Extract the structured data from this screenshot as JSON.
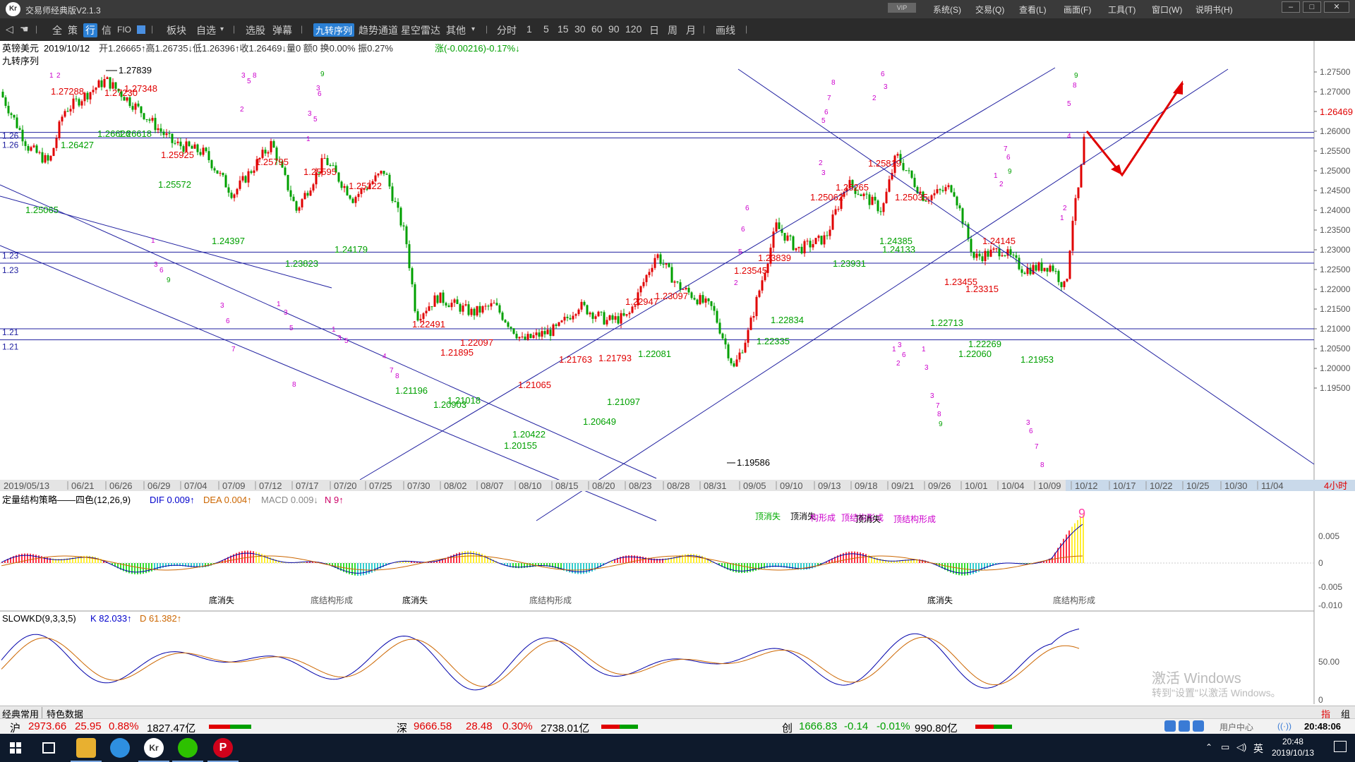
{
  "titlebar": {
    "logo": "Kr",
    "title": "交易师经典版V2.1.3",
    "vip": "VIP",
    "menus": [
      "系统(S)",
      "交易(Q)",
      "查看(L)",
      "画面(F)",
      "工具(T)",
      "窗口(W)",
      "说明书(H)"
    ],
    "min": "–",
    "max": "□",
    "close": "✕"
  },
  "toolbar": {
    "items": [
      "全",
      "策",
      "行",
      "信",
      "FIO",
      "板块",
      "自选",
      "选股",
      "弹幕",
      "九转序列",
      "趋势通道",
      "星空雷达",
      "其他",
      "分时",
      "1",
      "5",
      "15",
      "30",
      "60",
      "90",
      "120",
      "日",
      "周",
      "月",
      "画线"
    ]
  },
  "main_chart": {
    "info_symbol": "英镑美元",
    "info_date": "2019/10/12",
    "info_rest": "开1.26665↑高1.26735↓低1.26396↑收1.26469↓量0 额0 换0.00% 振0.27%",
    "info_change": "涨(-0.00216)-0.17%↓",
    "indicator_label": "九转序列",
    "price_axis": [
      "1.27500",
      "1.27000",
      "1.26500",
      "1.26000",
      "1.25500",
      "1.25000",
      "1.24500",
      "1.24000",
      "1.23500",
      "1.23000",
      "1.22500",
      "1.22000",
      "1.21500",
      "1.21000",
      "1.20500",
      "1.20000",
      "1.19500"
    ],
    "current_price": "1.26469",
    "level_labels": [
      "1.26",
      "1.26",
      "1.23",
      "1.23",
      "1.21",
      "1.21"
    ],
    "price_labels": [
      "1.27839",
      "1.27288",
      "1.27230",
      "1.27348",
      "1.26427",
      "1.26626",
      "1.26618",
      "1.25925",
      "1.25572",
      "1.25065",
      "1.25795",
      "1.24397",
      "1.25595",
      "1.25222",
      "1.24179",
      "1.23823",
      "1.22491",
      "1.22097",
      "1.21895",
      "1.21196",
      "1.21018",
      "1.20903",
      "1.21065",
      "1.20422",
      "1.20155",
      "1.21763",
      "1.21793",
      "1.20649",
      "1.21097",
      "1.22947",
      "1.23097",
      "1.22081",
      "1.19586",
      "1.23545",
      "1.23839",
      "1.22335",
      "1.22834",
      "1.25062",
      "1.25265",
      "1.23931",
      "1.25819",
      "1.24385",
      "1.24133",
      "1.25035",
      "1.24145",
      "1.23455",
      "1.23315",
      "1.22713",
      "1.22269",
      "1.22060",
      "1.21953"
    ],
    "date_axis": [
      "2019/05/13",
      "06/21",
      "06/26",
      "06/29",
      "07/04",
      "07/09",
      "07/12",
      "07/17",
      "07/20",
      "07/25",
      "07/30",
      "08/02",
      "08/07",
      "08/10",
      "08/15",
      "08/20",
      "08/23",
      "08/28",
      "08/31",
      "09/05",
      "09/10",
      "09/13",
      "09/18",
      "09/21",
      "09/26",
      "10/01",
      "10/04",
      "10/09",
      "10/12",
      "10/17",
      "10/22",
      "10/25",
      "10/30",
      "11/04"
    ],
    "period_label": "4小时"
  },
  "macd_panel": {
    "title": "定量结构策略——四色(12,26,9)",
    "dif": "DIF 0.009↑",
    "dea": "DEA 0.004↑",
    "macd": "MACD 0.009↓",
    "n": "N 9↑",
    "axis": [
      "0.005",
      "0",
      "-0.005",
      "-0.010"
    ],
    "annotations": [
      "顶消失",
      "顶消失",
      "构形成",
      "顶结构形成",
      "顶消失",
      "顶结构形成",
      "底消失",
      "底结构形成",
      "底消失",
      "底结构形成",
      "底消失",
      "底结构形成"
    ],
    "top_label": "9"
  },
  "kd_panel": {
    "title": "SLOWKD(9,3,3,5)",
    "k": "K 82.033↑",
    "d": "D 61.382↑",
    "axis": [
      "50.00",
      "0"
    ]
  },
  "statusbar": {
    "tabs": [
      "经典常用",
      "特色数据"
    ],
    "right": [
      "指",
      "组"
    ]
  },
  "index_bar": {
    "sh_label": "沪",
    "sh_value": "2973.66",
    "sh_change": "25.95",
    "sh_pct": "0.88%",
    "sh_amount": "1827.47亿",
    "sz_label": "深",
    "sz_value": "9666.58",
    "sz_change": "28.48",
    "sz_pct": "0.30%",
    "sz_amount": "2738.01亿",
    "cy_label": "创",
    "cy_value": "1666.83",
    "cy_change": "-0.14",
    "cy_pct": "-0.01%",
    "cy_amount": "990.80亿",
    "user_center": "用户中心",
    "time": "20:48:06"
  },
  "taskbar": {
    "time": "20:48",
    "date": "2019/10/13",
    "ime": "英"
  },
  "watermark": {
    "line1": "激活 Windows",
    "line2": "转到\"设置\"以激活 Windows。"
  },
  "colors": {
    "up": "#e00000",
    "down": "#00a000",
    "channel": "#2020a0",
    "annotation": "#cc00cc",
    "accent": "#2a7fd4"
  }
}
